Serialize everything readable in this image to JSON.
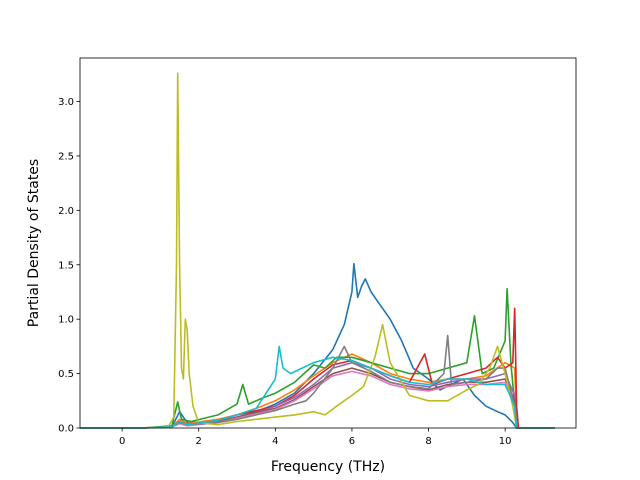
{
  "chart_data": {
    "type": "line",
    "xlabel": "Frequency (THz)",
    "ylabel": "Partial Density of States",
    "xlim": [
      -1.1,
      11.85
    ],
    "ylim": [
      0,
      3.4
    ],
    "xticks": [
      0,
      2,
      4,
      6,
      8,
      10
    ],
    "yticks": [
      0.0,
      0.5,
      1.0,
      1.5,
      2.0,
      2.5,
      3.0
    ],
    "xtick_labels": [
      "0",
      "2",
      "4",
      "6",
      "8",
      "10"
    ],
    "ytick_labels": [
      "0.0",
      "0.5",
      "1.0",
      "1.5",
      "2.0",
      "2.5",
      "3.0"
    ],
    "grid": false,
    "legend": "none",
    "series": [
      {
        "color": "#1f77b4",
        "points": [
          [
            -1.1,
            0
          ],
          [
            0.5,
            0
          ],
          [
            1.3,
            0.01
          ],
          [
            1.5,
            0.15
          ],
          [
            1.7,
            0.05
          ],
          [
            2.5,
            0.06
          ],
          [
            3.0,
            0.1
          ],
          [
            3.5,
            0.15
          ],
          [
            4.0,
            0.22
          ],
          [
            4.5,
            0.32
          ],
          [
            5.0,
            0.5
          ],
          [
            5.5,
            0.72
          ],
          [
            5.8,
            0.95
          ],
          [
            6.0,
            1.25
          ],
          [
            6.05,
            1.51
          ],
          [
            6.15,
            1.2
          ],
          [
            6.25,
            1.3
          ],
          [
            6.35,
            1.37
          ],
          [
            6.5,
            1.25
          ],
          [
            6.7,
            1.15
          ],
          [
            7.0,
            1.0
          ],
          [
            7.3,
            0.8
          ],
          [
            7.6,
            0.55
          ],
          [
            8.0,
            0.45
          ],
          [
            8.3,
            0.35
          ],
          [
            8.6,
            0.4
          ],
          [
            8.9,
            0.45
          ],
          [
            9.2,
            0.3
          ],
          [
            9.5,
            0.2
          ],
          [
            9.8,
            0.15
          ],
          [
            10.0,
            0.12
          ],
          [
            10.2,
            0.05
          ],
          [
            10.3,
            0
          ],
          [
            11.3,
            0
          ]
        ]
      },
      {
        "color": "#ff7f0e",
        "points": [
          [
            -1.1,
            0
          ],
          [
            0.5,
            0
          ],
          [
            1.3,
            0.01
          ],
          [
            1.5,
            0.08
          ],
          [
            1.7,
            0.04
          ],
          [
            2.5,
            0.08
          ],
          [
            3.0,
            0.12
          ],
          [
            3.5,
            0.18
          ],
          [
            4.0,
            0.25
          ],
          [
            4.5,
            0.35
          ],
          [
            5.0,
            0.48
          ],
          [
            5.5,
            0.6
          ],
          [
            6.0,
            0.68
          ],
          [
            6.5,
            0.6
          ],
          [
            7.0,
            0.5
          ],
          [
            7.5,
            0.45
          ],
          [
            8.0,
            0.42
          ],
          [
            8.5,
            0.45
          ],
          [
            9.0,
            0.45
          ],
          [
            9.5,
            0.48
          ],
          [
            10.0,
            0.6
          ],
          [
            10.25,
            0.55
          ],
          [
            10.3,
            0
          ],
          [
            11.3,
            0
          ]
        ]
      },
      {
        "color": "#2ca02c",
        "points": [
          [
            -1.1,
            0
          ],
          [
            0.5,
            0
          ],
          [
            1.3,
            0.02
          ],
          [
            1.45,
            0.24
          ],
          [
            1.55,
            0.08
          ],
          [
            1.8,
            0.06
          ],
          [
            2.5,
            0.12
          ],
          [
            3.0,
            0.22
          ],
          [
            3.15,
            0.4
          ],
          [
            3.3,
            0.22
          ],
          [
            3.7,
            0.28
          ],
          [
            4.0,
            0.32
          ],
          [
            4.5,
            0.42
          ],
          [
            5.0,
            0.58
          ],
          [
            5.3,
            0.55
          ],
          [
            5.6,
            0.65
          ],
          [
            6.0,
            0.65
          ],
          [
            6.5,
            0.6
          ],
          [
            7.0,
            0.55
          ],
          [
            7.5,
            0.5
          ],
          [
            8.0,
            0.5
          ],
          [
            8.5,
            0.55
          ],
          [
            9.0,
            0.6
          ],
          [
            9.2,
            1.03
          ],
          [
            9.4,
            0.5
          ],
          [
            9.7,
            0.55
          ],
          [
            10.0,
            0.8
          ],
          [
            10.05,
            1.28
          ],
          [
            10.15,
            0.6
          ],
          [
            10.25,
            0.2
          ],
          [
            10.3,
            0
          ],
          [
            11.3,
            0
          ]
        ]
      },
      {
        "color": "#d62728",
        "points": [
          [
            -1.1,
            0
          ],
          [
            0.5,
            0
          ],
          [
            1.3,
            0.01
          ],
          [
            1.5,
            0.06
          ],
          [
            1.7,
            0.03
          ],
          [
            2.5,
            0.07
          ],
          [
            3.0,
            0.12
          ],
          [
            3.5,
            0.16
          ],
          [
            4.0,
            0.2
          ],
          [
            4.5,
            0.3
          ],
          [
            5.0,
            0.45
          ],
          [
            5.5,
            0.58
          ],
          [
            6.0,
            0.62
          ],
          [
            6.5,
            0.55
          ],
          [
            7.0,
            0.48
          ],
          [
            7.5,
            0.42
          ],
          [
            7.9,
            0.68
          ],
          [
            8.1,
            0.4
          ],
          [
            8.5,
            0.45
          ],
          [
            9.0,
            0.5
          ],
          [
            9.5,
            0.55
          ],
          [
            9.8,
            0.65
          ],
          [
            10.0,
            0.55
          ],
          [
            10.2,
            0.6
          ],
          [
            10.25,
            1.1
          ],
          [
            10.3,
            0.2
          ],
          [
            10.35,
            0
          ],
          [
            11.3,
            0
          ]
        ]
      },
      {
        "color": "#9467bd",
        "points": [
          [
            -1.1,
            0
          ],
          [
            0.5,
            0
          ],
          [
            1.3,
            0.01
          ],
          [
            1.5,
            0.05
          ],
          [
            1.7,
            0.03
          ],
          [
            2.5,
            0.06
          ],
          [
            3.0,
            0.1
          ],
          [
            3.5,
            0.14
          ],
          [
            4.0,
            0.2
          ],
          [
            4.5,
            0.28
          ],
          [
            5.0,
            0.4
          ],
          [
            5.5,
            0.55
          ],
          [
            6.0,
            0.6
          ],
          [
            6.5,
            0.55
          ],
          [
            7.0,
            0.45
          ],
          [
            7.5,
            0.4
          ],
          [
            8.0,
            0.38
          ],
          [
            8.5,
            0.42
          ],
          [
            9.0,
            0.45
          ],
          [
            9.5,
            0.45
          ],
          [
            10.0,
            0.5
          ],
          [
            10.25,
            0.3
          ],
          [
            10.3,
            0
          ],
          [
            11.3,
            0
          ]
        ]
      },
      {
        "color": "#8c564b",
        "points": [
          [
            -1.1,
            0
          ],
          [
            0.5,
            0
          ],
          [
            1.3,
            0.01
          ],
          [
            1.5,
            0.05
          ],
          [
            1.7,
            0.03
          ],
          [
            2.5,
            0.06
          ],
          [
            3.0,
            0.1
          ],
          [
            3.5,
            0.14
          ],
          [
            4.0,
            0.18
          ],
          [
            4.5,
            0.26
          ],
          [
            5.0,
            0.38
          ],
          [
            5.5,
            0.5
          ],
          [
            6.0,
            0.55
          ],
          [
            6.5,
            0.5
          ],
          [
            7.0,
            0.42
          ],
          [
            7.5,
            0.38
          ],
          [
            8.0,
            0.35
          ],
          [
            8.5,
            0.4
          ],
          [
            9.0,
            0.42
          ],
          [
            9.5,
            0.42
          ],
          [
            10.0,
            0.45
          ],
          [
            10.25,
            0.25
          ],
          [
            10.3,
            0
          ],
          [
            11.3,
            0
          ]
        ]
      },
      {
        "color": "#e377c2",
        "points": [
          [
            -1.1,
            0
          ],
          [
            0.5,
            0
          ],
          [
            1.3,
            0.01
          ],
          [
            1.5,
            0.04
          ],
          [
            1.7,
            0.02
          ],
          [
            2.5,
            0.05
          ],
          [
            3.0,
            0.09
          ],
          [
            3.5,
            0.13
          ],
          [
            4.0,
            0.17
          ],
          [
            4.5,
            0.25
          ],
          [
            5.0,
            0.36
          ],
          [
            5.5,
            0.48
          ],
          [
            6.0,
            0.52
          ],
          [
            6.5,
            0.48
          ],
          [
            7.0,
            0.4
          ],
          [
            7.5,
            0.36
          ],
          [
            8.0,
            0.34
          ],
          [
            8.5,
            0.38
          ],
          [
            9.0,
            0.4
          ],
          [
            9.5,
            0.4
          ],
          [
            10.0,
            0.42
          ],
          [
            10.25,
            0.2
          ],
          [
            10.3,
            0
          ],
          [
            11.3,
            0
          ]
        ]
      },
      {
        "color": "#7f7f7f",
        "points": [
          [
            -1.1,
            0
          ],
          [
            0.5,
            0
          ],
          [
            1.3,
            0.01
          ],
          [
            1.5,
            0.05
          ],
          [
            1.7,
            0.03
          ],
          [
            2.5,
            0.05
          ],
          [
            3.0,
            0.08
          ],
          [
            3.5,
            0.12
          ],
          [
            4.0,
            0.16
          ],
          [
            4.5,
            0.22
          ],
          [
            4.8,
            0.25
          ],
          [
            5.0,
            0.32
          ],
          [
            5.5,
            0.55
          ],
          [
            5.8,
            0.75
          ],
          [
            6.0,
            0.6
          ],
          [
            6.5,
            0.52
          ],
          [
            7.0,
            0.42
          ],
          [
            7.5,
            0.38
          ],
          [
            8.0,
            0.36
          ],
          [
            8.4,
            0.5
          ],
          [
            8.5,
            0.85
          ],
          [
            8.6,
            0.4
          ],
          [
            9.0,
            0.42
          ],
          [
            9.5,
            0.45
          ],
          [
            9.8,
            0.55
          ],
          [
            10.0,
            0.55
          ],
          [
            10.25,
            0.2
          ],
          [
            10.3,
            0
          ],
          [
            11.3,
            0
          ]
        ]
      },
      {
        "color": "#bcbd22",
        "points": [
          [
            -1.1,
            0
          ],
          [
            0.5,
            0
          ],
          [
            1.2,
            0.01
          ],
          [
            1.35,
            0.1
          ],
          [
            1.42,
            1.5
          ],
          [
            1.45,
            3.26
          ],
          [
            1.5,
            1.5
          ],
          [
            1.55,
            0.55
          ],
          [
            1.6,
            0.45
          ],
          [
            1.65,
            1.0
          ],
          [
            1.7,
            0.9
          ],
          [
            1.75,
            0.5
          ],
          [
            1.85,
            0.2
          ],
          [
            2.0,
            0.05
          ],
          [
            2.5,
            0.03
          ],
          [
            3.0,
            0.06
          ],
          [
            3.5,
            0.08
          ],
          [
            4.0,
            0.1
          ],
          [
            4.5,
            0.12
          ],
          [
            5.0,
            0.15
          ],
          [
            5.3,
            0.12
          ],
          [
            5.6,
            0.2
          ],
          [
            6.0,
            0.3
          ],
          [
            6.3,
            0.38
          ],
          [
            6.6,
            0.65
          ],
          [
            6.8,
            0.95
          ],
          [
            7.0,
            0.6
          ],
          [
            7.5,
            0.3
          ],
          [
            8.0,
            0.25
          ],
          [
            8.5,
            0.25
          ],
          [
            9.0,
            0.35
          ],
          [
            9.3,
            0.4
          ],
          [
            9.6,
            0.55
          ],
          [
            9.8,
            0.75
          ],
          [
            10.0,
            0.5
          ],
          [
            10.2,
            0.2
          ],
          [
            10.3,
            0
          ],
          [
            11.3,
            0
          ]
        ]
      },
      {
        "color": "#17becf",
        "points": [
          [
            -1.1,
            0
          ],
          [
            0.5,
            0
          ],
          [
            1.3,
            0.01
          ],
          [
            1.5,
            0.06
          ],
          [
            1.7,
            0.03
          ],
          [
            2.5,
            0.07
          ],
          [
            3.0,
            0.12
          ],
          [
            3.5,
            0.18
          ],
          [
            4.0,
            0.45
          ],
          [
            4.1,
            0.75
          ],
          [
            4.2,
            0.55
          ],
          [
            4.4,
            0.5
          ],
          [
            4.7,
            0.55
          ],
          [
            5.0,
            0.6
          ],
          [
            5.5,
            0.65
          ],
          [
            6.0,
            0.62
          ],
          [
            6.5,
            0.55
          ],
          [
            7.0,
            0.48
          ],
          [
            7.5,
            0.42
          ],
          [
            8.0,
            0.4
          ],
          [
            8.5,
            0.45
          ],
          [
            9.0,
            0.45
          ],
          [
            9.5,
            0.4
          ],
          [
            10.0,
            0.4
          ],
          [
            10.25,
            0.2
          ],
          [
            10.3,
            0
          ],
          [
            11.3,
            0
          ]
        ]
      }
    ]
  }
}
